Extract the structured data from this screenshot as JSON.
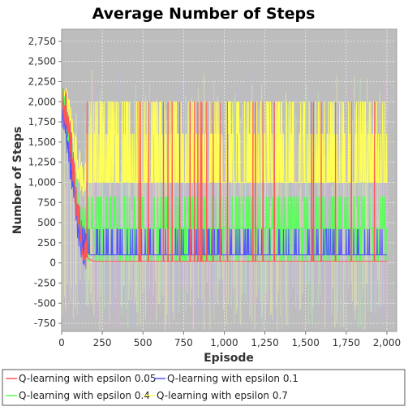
{
  "chart_data": {
    "type": "line",
    "title": "Average Number of Steps",
    "xlabel": "Episode",
    "ylabel": "Number of Steps",
    "xlim": [
      0,
      2060
    ],
    "ylim": [
      -850,
      2900
    ],
    "x_ticks": [
      0,
      250,
      500,
      750,
      1000,
      1250,
      1500,
      1750,
      2000
    ],
    "y_ticks": [
      -750,
      -500,
      -250,
      0,
      250,
      500,
      750,
      1000,
      1250,
      1500,
      1750,
      2000,
      2250,
      2500,
      2750
    ],
    "grid": true,
    "legend_position": "bottom",
    "series": [
      {
        "name": "Q-learning with epsilon 0.05",
        "color": "#ff5555",
        "x": [
          0,
          25,
          50,
          75,
          100,
          125,
          150,
          175,
          200,
          500,
          1000,
          1500,
          2000
        ],
        "y": [
          2000,
          1900,
          1600,
          1100,
          600,
          300,
          80,
          40,
          20,
          20,
          20,
          20,
          20
        ]
      },
      {
        "name": "Q-learning with epsilon 0.1",
        "color": "#5555ff",
        "x": [
          0,
          25,
          50,
          75,
          100,
          125,
          150,
          175,
          200,
          500,
          1000,
          1500,
          2000
        ],
        "y": [
          1900,
          1700,
          1300,
          900,
          500,
          250,
          150,
          100,
          100,
          100,
          100,
          100,
          100
        ]
      },
      {
        "name": "Q-learning with epsilon 0.4",
        "color": "#55ff55",
        "x": [
          0,
          25,
          50,
          75,
          100,
          125,
          150,
          175,
          200,
          500,
          1000,
          1500,
          2000
        ],
        "y": [
          2000,
          1800,
          1500,
          1100,
          700,
          500,
          430,
          430,
          430,
          430,
          430,
          430,
          430
        ]
      },
      {
        "name": "Q-learning with epsilon 0.7",
        "color": "#ffff55",
        "x": [
          0,
          25,
          50,
          75,
          100,
          125,
          150,
          175,
          200,
          500,
          1000,
          1500,
          2000
        ],
        "y": [
          2000,
          2000,
          1800,
          1500,
          1250,
          1050,
          1000,
          1000,
          1000,
          1000,
          1000,
          1000,
          1000
        ]
      }
    ]
  }
}
